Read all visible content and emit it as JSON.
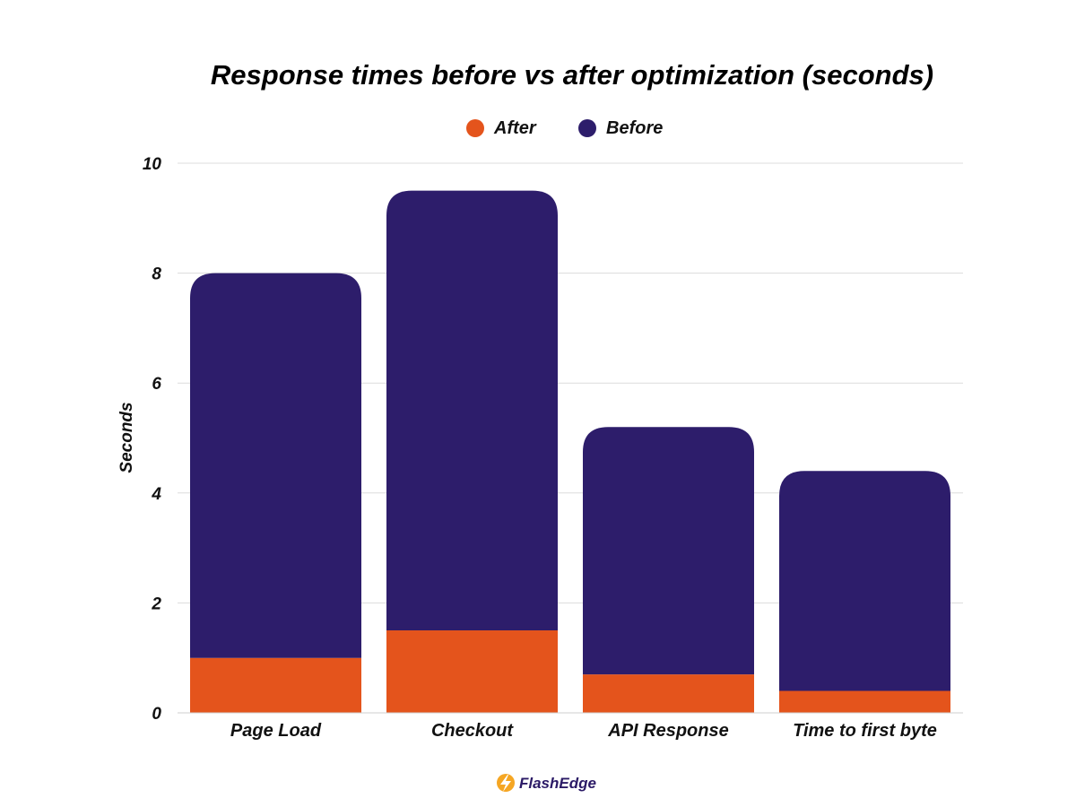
{
  "chart_data": {
    "type": "bar",
    "stacked": true,
    "title": "Response times before vs after optimization (seconds)",
    "xlabel": "",
    "ylabel": "Seconds",
    "ylim": [
      0,
      10
    ],
    "yticks": [
      "0",
      "2",
      "4",
      "6",
      "8",
      "10"
    ],
    "grid": true,
    "legend_position": "top-center",
    "categories": [
      "Page Load",
      "Checkout",
      "API Response",
      "Time to first byte"
    ],
    "series": [
      {
        "name": "After",
        "color": "#e4541c",
        "values": [
          1.0,
          1.5,
          0.7,
          0.4
        ]
      },
      {
        "name": "Before",
        "color": "#2d1d6b",
        "values": [
          7.0,
          8.0,
          4.5,
          4.0
        ]
      }
    ]
  },
  "brand": {
    "name": "FlashEdge",
    "icon": "lightning-bolt-icon",
    "accent": "#f5a623"
  }
}
